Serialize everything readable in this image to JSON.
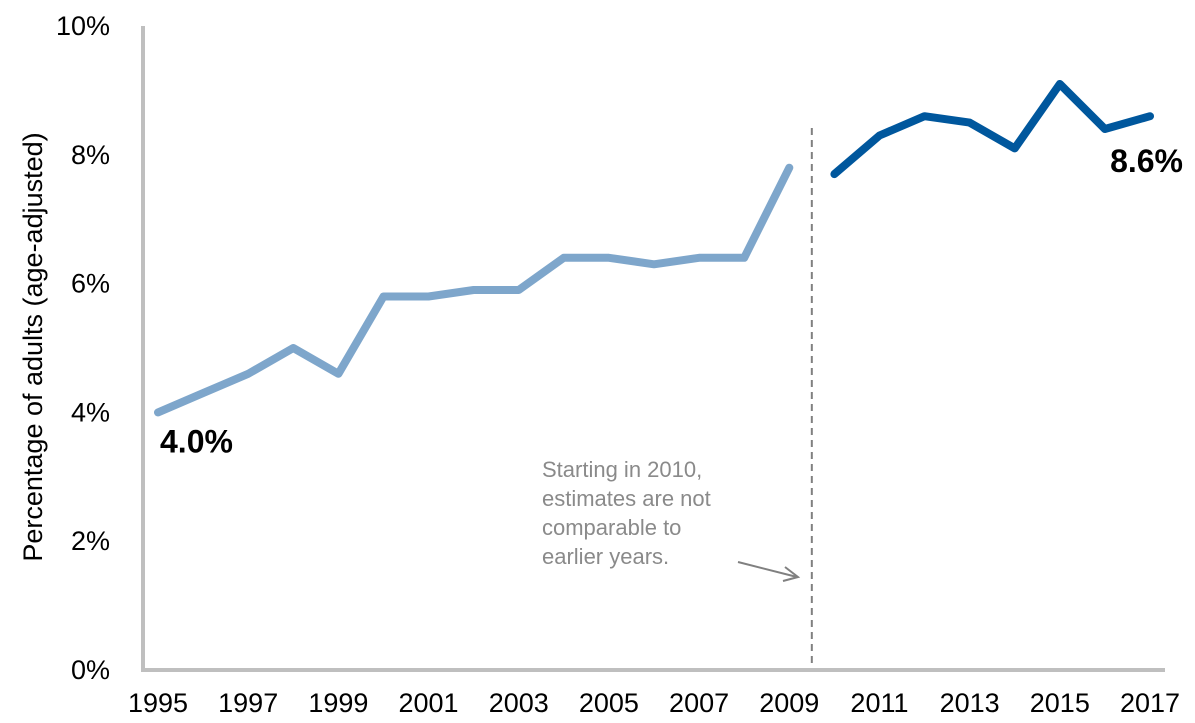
{
  "chart_data": {
    "type": "line",
    "ylabel": "Percentage of adults (age-adjusted)",
    "ylim": [
      0,
      10
    ],
    "y_ticks": [
      0,
      2,
      4,
      6,
      8,
      10
    ],
    "y_tick_labels": [
      "0%",
      "2%",
      "4%",
      "6%",
      "8%",
      "10%"
    ],
    "x_range": [
      1995,
      2017
    ],
    "x_ticks": [
      1995,
      1997,
      1999,
      2001,
      2003,
      2005,
      2007,
      2009,
      2011,
      2013,
      2015,
      2017
    ],
    "x_tick_labels": [
      "1995",
      "1997",
      "1999",
      "2001",
      "2003",
      "2005",
      "2007",
      "2009",
      "2011",
      "2013",
      "2015",
      "2017"
    ],
    "series": [
      {
        "color": "#7ea6cb",
        "x": [
          1995,
          1996,
          1997,
          1998,
          1999,
          2000,
          2001,
          2002,
          2003,
          2004,
          2005,
          2006,
          2007,
          2008,
          2009
        ],
        "values": [
          4.0,
          4.3,
          4.6,
          5.0,
          4.6,
          5.8,
          5.8,
          5.9,
          5.9,
          6.4,
          6.4,
          6.3,
          6.4,
          6.4,
          7.8
        ]
      },
      {
        "color": "#00579d",
        "x": [
          2010,
          2011,
          2012,
          2013,
          2014,
          2015,
          2016,
          2017
        ],
        "values": [
          7.7,
          8.3,
          8.6,
          8.5,
          8.1,
          9.1,
          8.4,
          8.6
        ]
      }
    ],
    "data_labels": [
      {
        "text": "4.0%",
        "x": 1995,
        "y": 4.0
      },
      {
        "text": "8.6%",
        "x": 2017,
        "y": 8.6
      }
    ],
    "divider": {
      "x": 2009.5,
      "style": "dashed"
    },
    "annotation": {
      "lines": [
        "Starting in 2010,",
        "estimates are not",
        "comparable to",
        "earlier years."
      ]
    },
    "colors": {
      "axis": "#bfbfbf",
      "divider": "#808080",
      "annotation": "#8a8a8a"
    }
  }
}
